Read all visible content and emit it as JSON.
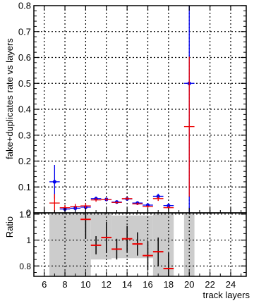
{
  "chart_data": [
    {
      "type": "scatter",
      "title": "",
      "xlabel": "",
      "ylabel": "fake+duplicates rate vs layers",
      "xlim": [
        5,
        25.5
      ],
      "ylim": [
        0,
        0.8
      ],
      "grid": true,
      "x": [
        7,
        8,
        9,
        10,
        11,
        12,
        13,
        14,
        15,
        16,
        17,
        18,
        20
      ],
      "series": [
        {
          "color": "#0000ee",
          "marker": "circle",
          "values": [
            0.12,
            0.015,
            0.018,
            0.022,
            0.055,
            0.052,
            0.042,
            0.054,
            0.038,
            0.03,
            0.064,
            0.028,
            0.5
          ],
          "errors": [
            0.065,
            0.012,
            0.012,
            0.01,
            0.008,
            0.006,
            0.006,
            0.006,
            0.005,
            0.006,
            0.01,
            0.009,
            0.5
          ]
        },
        {
          "color": "#ee0000",
          "marker": "dash",
          "values": [
            0.038,
            0.02,
            0.025,
            0.027,
            0.05,
            0.052,
            0.04,
            0.055,
            0.035,
            0.025,
            0.055,
            0.02,
            0.333
          ],
          "errors": [
            0.035,
            0.01,
            0.01,
            0.01,
            0.007,
            0.006,
            0.005,
            0.006,
            0.005,
            0.005,
            0.009,
            0.008,
            0.27
          ]
        }
      ],
      "yticks": [
        "0",
        "0.1",
        "0.2",
        "0.3",
        "0.4",
        "0.5",
        "0.6",
        "0.7",
        "0.8"
      ]
    },
    {
      "type": "scatter",
      "title": "",
      "xlabel": "track layers",
      "ylabel": "Ratio",
      "xlim": [
        5,
        25.5
      ],
      "ylim": [
        0.72,
        1.21
      ],
      "grid": true,
      "xticks": [
        "6",
        "8",
        "10",
        "12",
        "14",
        "16",
        "18",
        "20",
        "22",
        "24"
      ],
      "yticks": [
        "0.8",
        "1",
        "1.2"
      ],
      "ratio": {
        "color": "#ee0000",
        "x": [
          10,
          11,
          12,
          13,
          14,
          15,
          16,
          17,
          18
        ],
        "values": [
          1.16,
          0.96,
          1.02,
          0.93,
          1.01,
          0.97,
          0.88,
          0.91,
          0.78
        ],
        "errors": [
          0.15,
          0.07,
          0.12,
          0.08,
          0.1,
          0.09,
          0.11,
          0.11,
          0.12
        ]
      },
      "bands": [
        {
          "from": 6.5,
          "to": 10.5,
          "low": 0.72,
          "high": 1.2,
          "color": "#cccccc"
        },
        {
          "from": 10.5,
          "to": 12.5,
          "low": 0.85,
          "high": 1.2,
          "color": "#cccccc"
        },
        {
          "from": 12.5,
          "to": 16.5,
          "low": 0.86,
          "high": 1.19,
          "color": "#cccccc"
        },
        {
          "from": 16.5,
          "to": 18.5,
          "low": 0.72,
          "high": 1.2,
          "color": "#cccccc"
        },
        {
          "from": 19.5,
          "to": 20.5,
          "low": 0.72,
          "high": 1.2,
          "color": "#cccccc"
        }
      ]
    }
  ]
}
